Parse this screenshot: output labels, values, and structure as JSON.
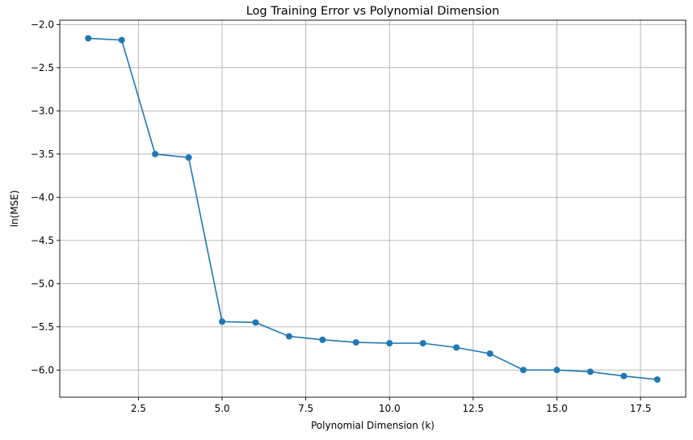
{
  "chart_data": {
    "type": "line",
    "title": "Log Training Error vs Polynomial Dimension",
    "xlabel": "Polynomial Dimension (k)",
    "ylabel": "ln(MSE)",
    "xlim": [
      0.15,
      18.85
    ],
    "ylim": [
      -6.315,
      -1.95
    ],
    "xticks": [
      2.5,
      5.0,
      7.5,
      10.0,
      12.5,
      15.0,
      17.5
    ],
    "xtick_labels": [
      "2.5",
      "5.0",
      "7.5",
      "10.0",
      "12.5",
      "15.0",
      "17.5"
    ],
    "yticks": [
      -2.0,
      -2.5,
      -3.0,
      -3.5,
      -4.0,
      -4.5,
      -5.0,
      -5.5,
      -6.0
    ],
    "ytick_labels": [
      "−2.0",
      "−2.5",
      "−3.0",
      "−3.5",
      "−4.0",
      "−4.5",
      "−5.0",
      "−5.5",
      "−6.0"
    ],
    "grid": true,
    "legend": "none",
    "series": [
      {
        "color": "#1f77b4",
        "marker": "circle",
        "x": [
          1,
          2,
          3,
          4,
          5,
          6,
          7,
          8,
          9,
          10,
          11,
          12,
          13,
          14,
          15,
          16,
          17,
          18
        ],
        "y": [
          -2.16,
          -2.18,
          -3.5,
          -3.54,
          -5.44,
          -5.45,
          -5.61,
          -5.65,
          -5.68,
          -5.69,
          -5.69,
          -5.74,
          -5.81,
          -6.0,
          -6.0,
          -6.02,
          -6.07,
          -6.11
        ]
      }
    ]
  }
}
